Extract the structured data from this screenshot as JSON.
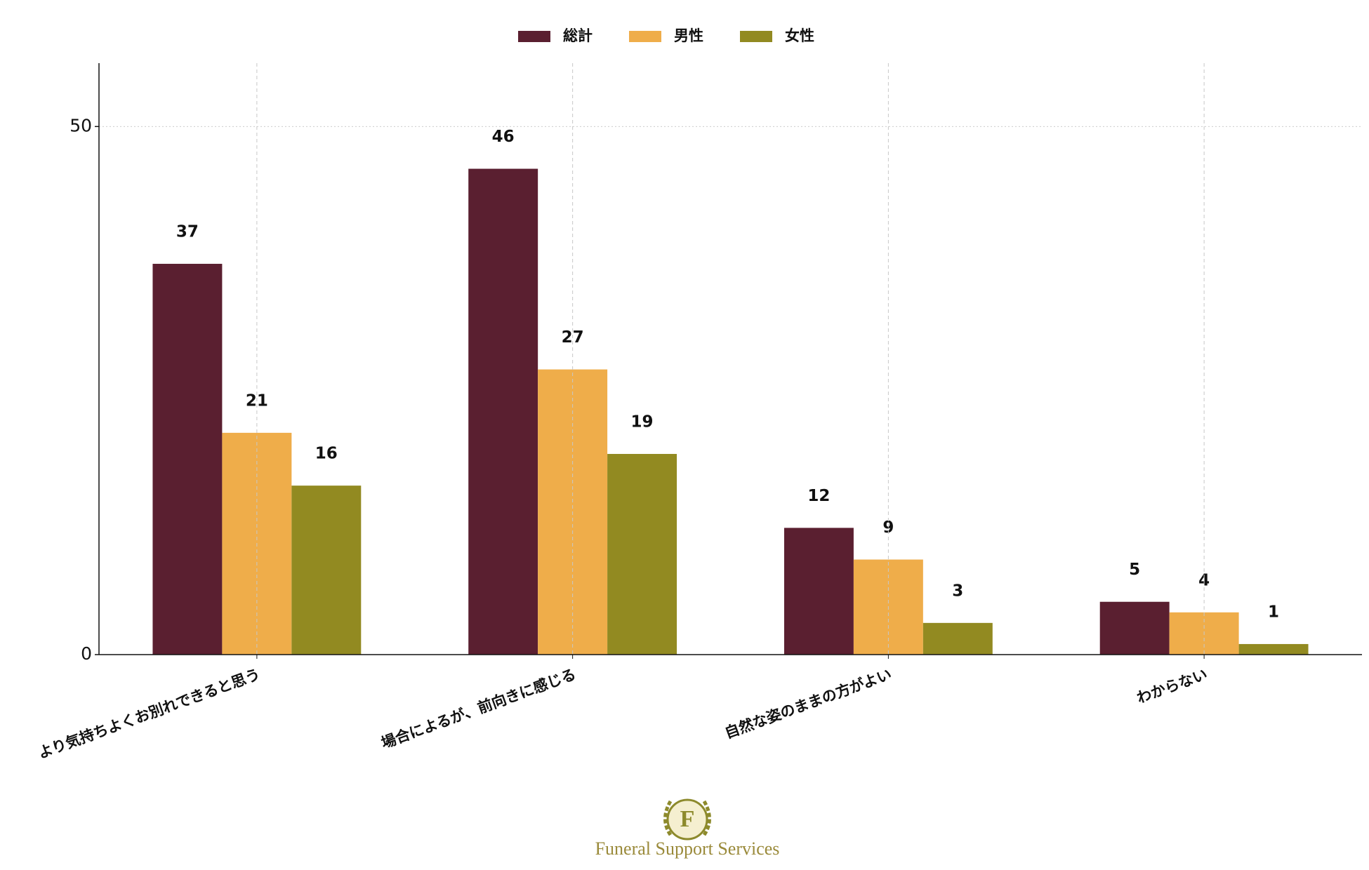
{
  "chart_data": {
    "type": "bar",
    "categories": [
      "より気持ちよくお別れできると思う",
      "場合によるが、前向きに感じる",
      "自然な姿のままの方がよい",
      "わからない"
    ],
    "series": [
      {
        "name": "総計",
        "color": "#5a1f30",
        "values": [
          37,
          46,
          12,
          5
        ]
      },
      {
        "name": "男性",
        "color": "#efad4a",
        "values": [
          21,
          27,
          9,
          4
        ]
      },
      {
        "name": "女性",
        "color": "#928a21",
        "values": [
          16,
          19,
          3,
          1
        ]
      }
    ],
    "ylim": [
      0,
      56
    ],
    "yticks": [
      0,
      50
    ],
    "grid": true,
    "legend": "top"
  },
  "logo": {
    "letter": "F",
    "text": "Funeral Support Services"
  }
}
